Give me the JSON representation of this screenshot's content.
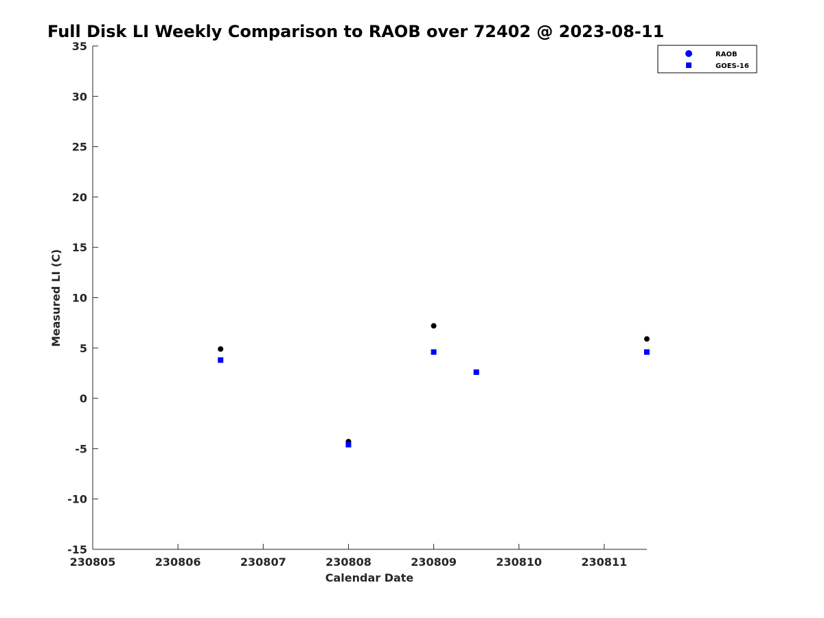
{
  "chart_data": {
    "type": "scatter",
    "title": "Full Disk LI Weekly Comparison to RAOB over 72402 @ 2023-08-11",
    "xlabel": "Calendar Date",
    "ylabel": "Measured LI (C)",
    "xlim": [
      230805,
      230811.5
    ],
    "ylim": [
      -15,
      35
    ],
    "x_ticks": [
      230805,
      230806,
      230807,
      230808,
      230809,
      230810,
      230811
    ],
    "x_tick_labels": [
      "230805",
      "230806",
      "230807",
      "230808",
      "230809",
      "230810",
      "230811"
    ],
    "y_ticks": [
      -15,
      -10,
      -5,
      0,
      5,
      10,
      15,
      20,
      25,
      30,
      35
    ],
    "y_tick_labels": [
      "-15",
      "-10",
      "-5",
      "0",
      "5",
      "10",
      "15",
      "20",
      "25",
      "30",
      "35"
    ],
    "grid": false,
    "legend_position": "top-right",
    "series": [
      {
        "name": "RAOB",
        "marker": "circle",
        "color": "#000000",
        "legend_color": "#0000ff",
        "x": [
          230806.5,
          230808,
          230809,
          230809.5,
          230811.5
        ],
        "y": [
          4.9,
          -4.3,
          7.2,
          2.6,
          5.9
        ]
      },
      {
        "name": "GOES-16",
        "marker": "square",
        "color": "#0000ff",
        "legend_color": "#0000ff",
        "x": [
          230806.5,
          230808,
          230809,
          230809.5,
          230811.5
        ],
        "y": [
          3.8,
          -4.6,
          4.6,
          2.6,
          4.6
        ]
      }
    ]
  }
}
